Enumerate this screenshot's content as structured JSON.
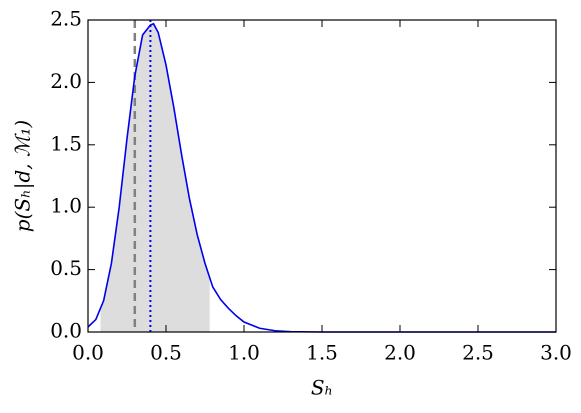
{
  "chart_data": {
    "type": "line",
    "xlabel": "Sₕ",
    "ylabel": "p(Sₕ|d, ℳ₁)",
    "x": [
      0,
      0.05,
      0.1,
      0.15,
      0.2,
      0.25,
      0.3,
      0.35,
      0.4,
      0.42,
      0.45,
      0.5,
      0.55,
      0.6,
      0.65,
      0.7,
      0.75,
      0.8,
      0.85,
      0.9,
      0.95,
      1.0,
      1.1,
      1.2,
      1.3,
      1.5,
      2.0,
      2.5,
      3.0
    ],
    "series": [
      {
        "color": "#0000ee",
        "values": [
          0.04,
          0.1,
          0.25,
          0.55,
          1.0,
          1.55,
          2.05,
          2.38,
          2.46,
          2.47,
          2.4,
          2.14,
          1.8,
          1.42,
          1.07,
          0.78,
          0.55,
          0.36,
          0.26,
          0.19,
          0.13,
          0.08,
          0.03,
          0.01,
          0.003,
          0,
          0,
          0,
          0
        ]
      }
    ],
    "interval": [
      0.08,
      0.78
    ],
    "interval_color": "#dddddd",
    "vlines": [
      {
        "x": 0.3,
        "color": "#808080",
        "style": "dashed"
      },
      {
        "x": 0.4,
        "color": "#0000ee",
        "style": "dotted"
      }
    ],
    "xlim": [
      0,
      3
    ],
    "ylim": [
      0,
      2.5
    ],
    "xticks": [
      {
        "value": 0,
        "label": "0.0"
      },
      0.5,
      {
        "value": 1,
        "label": "1.0"
      },
      1.5,
      {
        "value": 2,
        "label": "2.0"
      },
      2.5,
      {
        "value": 3,
        "label": "3.0"
      }
    ],
    "yticks": [
      {
        "value": 0,
        "label": "0.0"
      },
      0.5,
      {
        "value": 1,
        "label": "1.0"
      },
      1.5,
      {
        "value": 2,
        "label": "2.0"
      },
      2.5
    ],
    "grid": false
  }
}
